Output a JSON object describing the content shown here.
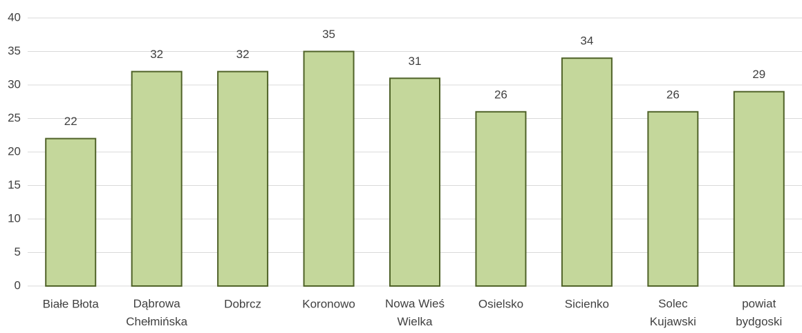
{
  "chart_data": {
    "type": "bar",
    "categories": [
      "Białe Błota",
      "Dąbrowa\nChełmińska",
      "Dobrcz",
      "Koronowo",
      "Nowa Wieś\nWielka",
      "Osielsko",
      "Sicienko",
      "Solec\nKujawski",
      "powiat\nbydgoski"
    ],
    "values": [
      22,
      32,
      32,
      35,
      31,
      26,
      34,
      26,
      29
    ],
    "color": "#c4d79b",
    "edge_color": "#4f6228",
    "ylim": [
      0,
      40
    ],
    "yticks": [
      0,
      5,
      10,
      15,
      20,
      25,
      30,
      35,
      40
    ],
    "grid": true
  }
}
